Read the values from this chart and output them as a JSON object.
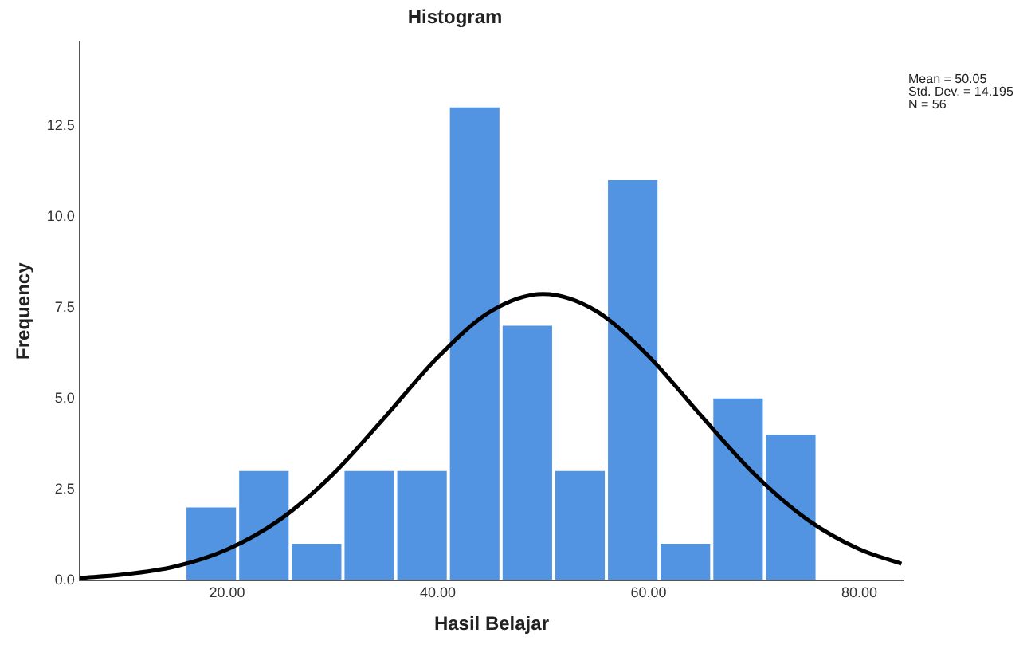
{
  "chart_data": {
    "type": "histogram",
    "title": "Histogram",
    "xlabel": "Hasil Belajar",
    "ylabel": "Frequency",
    "bins": [
      16,
      21,
      26,
      31,
      36,
      41,
      46,
      51,
      56,
      61,
      66,
      71,
      76
    ],
    "values": [
      2,
      3,
      1,
      3,
      3,
      13,
      7,
      3,
      11,
      1,
      5,
      4
    ],
    "color": "#5294e2",
    "series": [
      {
        "type": "line",
        "color": "#000000",
        "x": [
          6,
          10,
          15,
          20,
          25,
          30,
          35,
          40,
          45,
          50,
          55,
          60,
          65,
          70,
          75,
          80,
          84
        ],
        "values": [
          0.06,
          0.15,
          0.37,
          0.84,
          1.66,
          2.9,
          4.49,
          6.13,
          7.39,
          7.87,
          7.41,
          6.16,
          4.52,
          2.93,
          1.68,
          0.85,
          0.45
        ]
      }
    ],
    "xlim": [
      6,
      84.2
    ],
    "xticks": [
      {
        "value": 20,
        "label": "20.00"
      },
      {
        "value": 40,
        "label": "40.00"
      },
      {
        "value": 60,
        "label": "60.00"
      },
      {
        "value": 80,
        "label": "80.00"
      }
    ],
    "ylim": [
      0,
      14.8
    ],
    "yticks": [
      {
        "value": 0,
        "label": "0.0"
      },
      {
        "value": 2.5,
        "label": "2.5"
      },
      {
        "value": 5,
        "label": "5.0"
      },
      {
        "value": 7.5,
        "label": "7.5"
      },
      {
        "value": 10,
        "label": "10.0"
      },
      {
        "value": 12.5,
        "label": "12.5"
      }
    ],
    "annotations": [
      "Mean = 50.05",
      "Std. Dev. = 14.195",
      "N = 56"
    ],
    "grid": false,
    "legend": false,
    "marker": "none",
    "line_style": "solid"
  }
}
